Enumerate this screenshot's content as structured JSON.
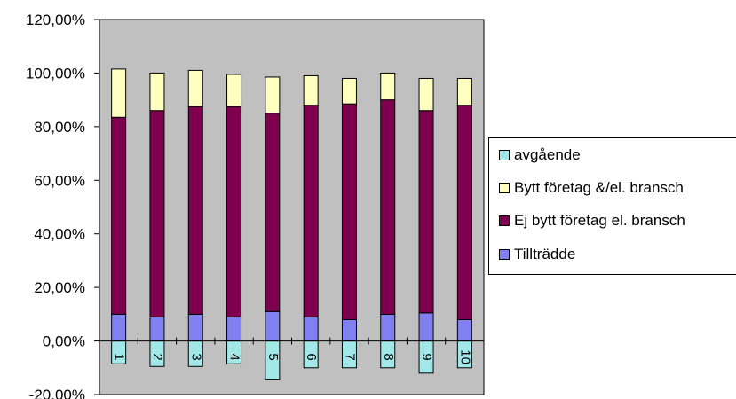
{
  "chart_data": {
    "type": "bar",
    "stacked": true,
    "categories": [
      "1",
      "2",
      "3",
      "4",
      "5",
      "6",
      "7",
      "8",
      "9",
      "10"
    ],
    "series": [
      {
        "name": "avgående",
        "color": "#a3e8e8",
        "values": [
          -8.5,
          -9.5,
          -9.5,
          -8.5,
          -14.5,
          -10,
          -10,
          -10,
          -12,
          -10
        ]
      },
      {
        "name": "Tillträdde",
        "color": "#8080f0",
        "values": [
          10,
          9,
          10,
          9,
          11,
          9,
          8,
          10,
          10.5,
          8
        ]
      },
      {
        "name": "Ej bytt företag el. bransch",
        "color": "#800050",
        "values": [
          73.5,
          77,
          77.5,
          78.5,
          74,
          79,
          80.5,
          80,
          75.5,
          80
        ]
      },
      {
        "name": "Bytt företag &/el. bransch",
        "color": "#ffffc0",
        "values": [
          18,
          14,
          13.5,
          12,
          13.5,
          11,
          9.5,
          10,
          12,
          10
        ]
      }
    ],
    "legend_order": [
      "avgående",
      "Bytt företag &/el. bransch",
      "Ej bytt företag el. bransch",
      "Tillträdde"
    ],
    "ylim": [
      -20,
      120
    ],
    "yticks": [
      "120,00%",
      "100,00%",
      "80,00%",
      "60,00%",
      "40,00%",
      "20,00%",
      "0,00%",
      "-20,00%"
    ],
    "ytick_values": [
      120,
      100,
      80,
      60,
      40,
      20,
      0,
      -20
    ],
    "plot_background": "#c0c0c0",
    "grid": false,
    "legend_position": "right",
    "title": "",
    "xlabel": "",
    "ylabel": ""
  }
}
